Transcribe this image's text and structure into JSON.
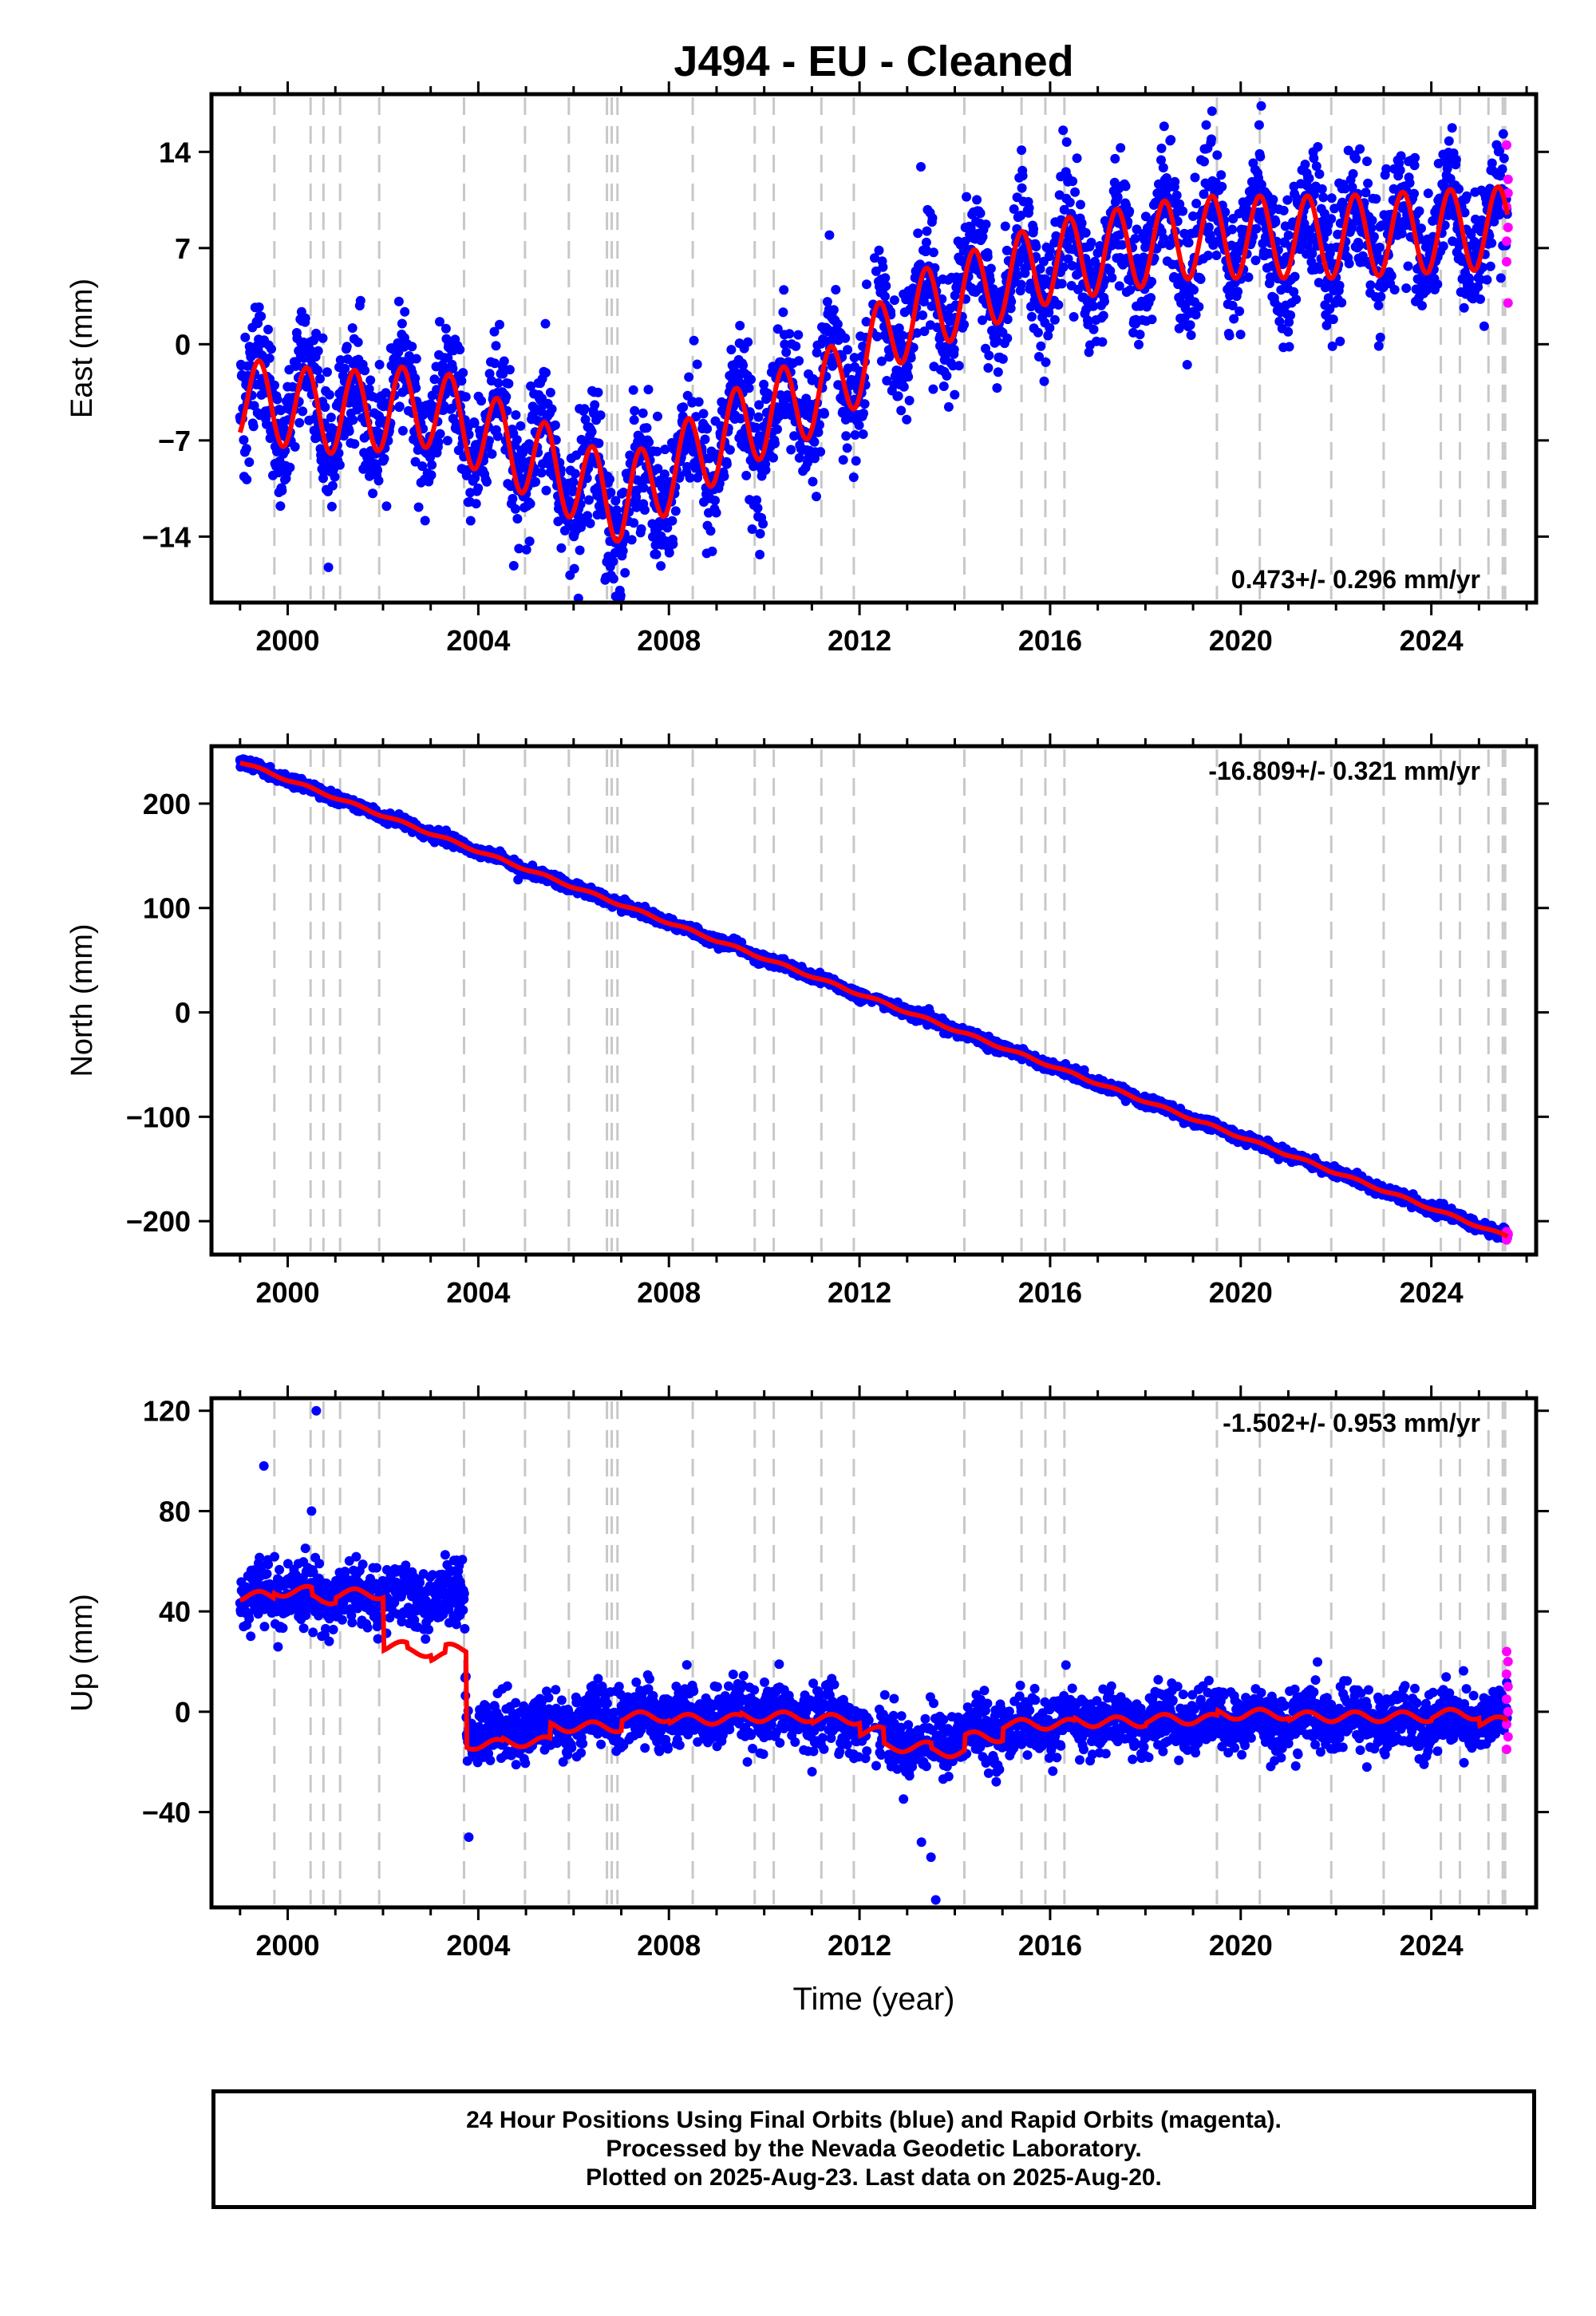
{
  "title": "J494  - EU - Cleaned",
  "x_axis_title": "Time (year)",
  "colors": {
    "final": "#0000ff",
    "rapid": "#ff00ff",
    "model": "#ff0000",
    "breaks": "#c8c8c8"
  },
  "footer": {
    "line1": "24 Hour Positions Using Final Orbits (blue) and Rapid Orbits (magenta).",
    "line2": "Processed by the Nevada Geodetic Laboratory.",
    "line3": "Plotted on 2025-Aug-23. Last data on 2025-Aug-20."
  },
  "chart_data": [
    {
      "type": "scatter",
      "ylabel": "East (mm)",
      "rate_label": "0.473+/- 0.296 mm/yr",
      "rate_position": "bottom-right",
      "xlim": [
        1998.4,
        2026.2
      ],
      "ylim": [
        -18.8,
        18.2
      ],
      "xticks": [
        2000,
        2004,
        2008,
        2012,
        2016,
        2020,
        2024
      ],
      "yticks": [
        -14,
        -7,
        0,
        7,
        14
      ],
      "ytick_labels": [
        "−14",
        "−7",
        "0",
        "7",
        "14"
      ],
      "trend_model": {
        "knots": [
          [
            1999.0,
            -4.0
          ],
          [
            2001.0,
            -5.0
          ],
          [
            2003.0,
            -4.5
          ],
          [
            2007.0,
            -11.5
          ],
          [
            2009.5,
            -6.0
          ],
          [
            2011.5,
            -3.0
          ],
          [
            2013.0,
            2.0
          ],
          [
            2016.0,
            6.0
          ],
          [
            2019.0,
            7.8
          ],
          [
            2022.0,
            7.8
          ],
          [
            2025.6,
            8.5
          ]
        ],
        "seasonal_amplitude": 3.0,
        "scatter_sd": 2.3
      },
      "rapid_points_y": [
        14.5,
        12,
        10,
        8.5,
        6,
        3,
        7.5,
        11
      ]
    },
    {
      "type": "scatter",
      "ylabel": "North (mm)",
      "rate_label": "-16.809+/- 0.321 mm/yr",
      "rate_position": "top-right",
      "xlim": [
        1998.4,
        2026.2
      ],
      "ylim": [
        -232,
        255
      ],
      "xticks": [
        2000,
        2004,
        2008,
        2012,
        2016,
        2020,
        2024
      ],
      "yticks": [
        -200,
        -100,
        0,
        100,
        200
      ],
      "ytick_labels": [
        "−200",
        "−100",
        "0",
        "100",
        "200"
      ],
      "trend_model": {
        "knots": [
          [
            1999.0,
            240
          ],
          [
            2025.6,
            -215
          ]
        ],
        "seasonal_amplitude": 1.2,
        "scatter_sd": 2.5
      },
      "rapid_points_y": [
        -210,
        -213,
        -216,
        -212,
        -218
      ]
    },
    {
      "type": "scatter",
      "ylabel": "Up (mm)",
      "rate_label": "-1.502+/- 0.953 mm/yr",
      "rate_position": "top-right",
      "xlim": [
        1998.4,
        2026.2
      ],
      "ylim": [
        -78,
        125
      ],
      "xticks": [
        2000,
        2004,
        2008,
        2012,
        2016,
        2020,
        2024
      ],
      "yticks": [
        -40,
        0,
        40,
        80,
        120
      ],
      "ytick_labels": [
        "−40",
        "0",
        "40",
        "80",
        "120"
      ],
      "model_steps": [
        [
          1999.0,
          46
        ],
        [
          1999.7,
          48
        ],
        [
          2000.5,
          45
        ],
        [
          2001.0,
          47
        ],
        [
          2002.0,
          26
        ],
        [
          2002.5,
          24
        ],
        [
          2003.0,
          22
        ],
        [
          2003.3,
          25
        ],
        [
          2003.75,
          -13
        ],
        [
          2004.5,
          -12
        ],
        [
          2005.5,
          -6
        ],
        [
          2007.0,
          -2
        ],
        [
          2008.0,
          -3
        ],
        [
          2009.5,
          -2
        ],
        [
          2011.0,
          -3
        ],
        [
          2012.0,
          -8
        ],
        [
          2012.5,
          -14
        ],
        [
          2013.5,
          -16
        ],
        [
          2014.2,
          -10
        ],
        [
          2015.0,
          -5
        ],
        [
          2016.5,
          -4
        ],
        [
          2018.0,
          -3
        ],
        [
          2019.5,
          -1
        ],
        [
          2021.0,
          -2
        ],
        [
          2022.5,
          -2
        ],
        [
          2024.0,
          -1
        ],
        [
          2025.0,
          -4
        ],
        [
          2025.6,
          -8
        ]
      ],
      "trend_model": {
        "knots": [
          [
            1999.0,
            46
          ],
          [
            2003.7,
            46
          ],
          [
            2003.75,
            -8
          ],
          [
            2007.0,
            -2
          ],
          [
            2011.5,
            -2
          ],
          [
            2013.2,
            -14
          ],
          [
            2014.5,
            -8
          ],
          [
            2017.0,
            -4
          ],
          [
            2025.6,
            -3
          ]
        ],
        "seasonal_amplitude": 2.5,
        "scatter_sd": 6.0
      },
      "outliers": [
        [
          1999.5,
          98
        ],
        [
          2000.6,
          120
        ],
        [
          2000.5,
          80
        ],
        [
          2013.6,
          -75
        ],
        [
          2013.5,
          -58
        ],
        [
          2013.3,
          -52
        ],
        [
          2003.8,
          -50
        ]
      ],
      "rapid_points_y": [
        24,
        20,
        15,
        10,
        5,
        0,
        -5,
        -10,
        -15
      ]
    }
  ],
  "break_lines": [
    1999.72,
    2000.48,
    2000.75,
    2001.1,
    2001.92,
    2003.7,
    2004.98,
    2005.9,
    2006.7,
    2006.8,
    2006.92,
    2008.5,
    2009.8,
    2010.2,
    2011.2,
    2011.88,
    2014.2,
    2015.4,
    2015.9,
    2016.3,
    2019.5,
    2020.4,
    2021.9,
    2023.0,
    2024.2,
    2024.6,
    2025.2,
    2025.5,
    2025.55
  ],
  "last_epoch": 2025.6
}
